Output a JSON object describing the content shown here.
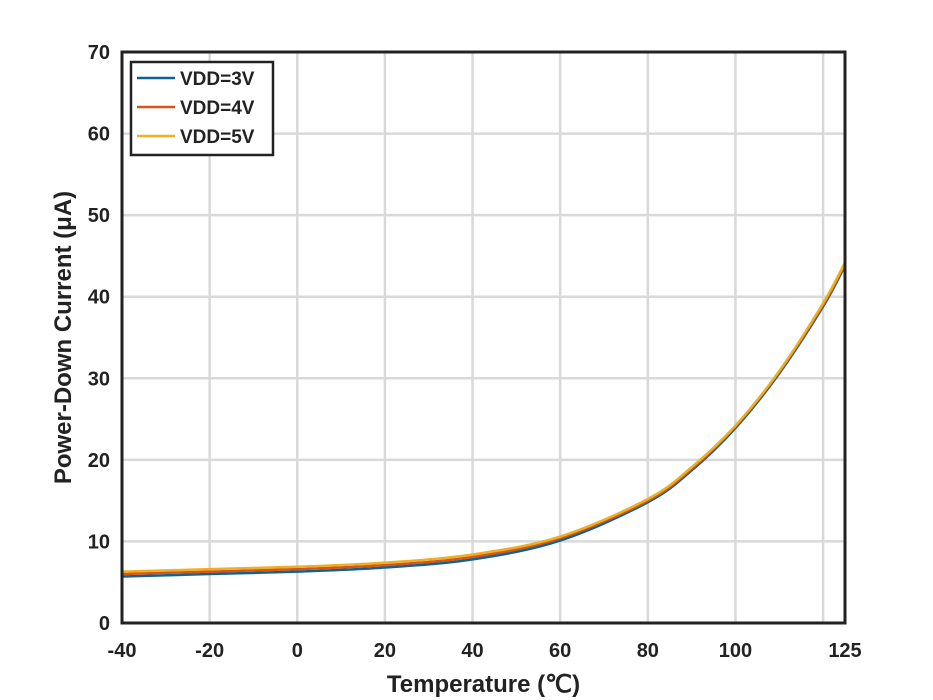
{
  "chart_data": {
    "type": "line",
    "title": "",
    "xlabel": "Temperature (℃)",
    "ylabel": "Power-Down Current (μA)",
    "xlim": [
      -40,
      125
    ],
    "ylim": [
      0,
      70
    ],
    "xticks": [
      -40,
      -20,
      0,
      20,
      40,
      60,
      80,
      100,
      125
    ],
    "yticks": [
      0,
      10,
      20,
      30,
      40,
      50,
      60,
      70
    ],
    "x_grid": [
      -40,
      -20,
      0,
      20,
      40,
      60,
      80,
      100,
      120
    ],
    "y_grid": [
      0,
      10,
      20,
      30,
      40,
      50,
      60,
      70
    ],
    "grid": true,
    "legend": "top-left",
    "x": [
      -40,
      -20,
      0,
      20,
      40,
      60,
      80,
      90,
      100,
      110,
      120,
      125
    ],
    "series": [
      {
        "name": "VDD=3V",
        "color": "#0e6491",
        "values": [
          5.7,
          6.0,
          6.3,
          6.8,
          7.8,
          10.1,
          14.8,
          18.7,
          23.9,
          30.6,
          38.8,
          43.8
        ]
      },
      {
        "name": "VDD=4V",
        "color": "#d95319",
        "values": [
          6.0,
          6.3,
          6.6,
          7.1,
          8.1,
          10.4,
          15.0,
          18.9,
          24.1,
          30.8,
          39.0,
          44.0
        ]
      },
      {
        "name": "VDD=5V",
        "color": "#edb120",
        "values": [
          6.3,
          6.6,
          6.9,
          7.4,
          8.4,
          10.6,
          15.2,
          19.1,
          24.2,
          30.9,
          39.2,
          44.2
        ]
      }
    ]
  }
}
